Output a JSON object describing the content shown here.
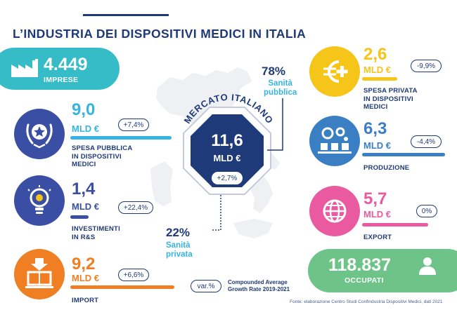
{
  "title": "L’INDUSTRIA DEI DISPOSITIVI MEDICI IN ITALIA",
  "imprese": {
    "value": "4.449",
    "label": "IMPRESE",
    "icon": "factory-icon"
  },
  "spesa_pubblica": {
    "value": "9,0",
    "unit": "MLD €",
    "growth": "+7,4%",
    "label_lines": [
      "SPESA PUBBLICA",
      "IN DISPOSITIVI",
      "MEDICI"
    ],
    "color": "#36b5e3",
    "icon": "star-laurel-icon"
  },
  "investimenti": {
    "value": "1,4",
    "unit": "MLD €",
    "growth": "+22,4%",
    "label_lines": [
      "INVESTIMENTI",
      "IN R&S"
    ],
    "color": "#3a4fa3",
    "icon": "lightbulb-gear-icon"
  },
  "import": {
    "value": "9,2",
    "unit": "MLD €",
    "growth": "+6,6%",
    "label_lines": [
      "IMPORT"
    ],
    "color": "#f07e22",
    "icon": "box-import-icon"
  },
  "spesa_privata": {
    "value": "2,6",
    "unit": "MLD €",
    "growth": "-9,9%",
    "label_lines": [
      "SPESA PRIVATA",
      "IN DISPOSITIVI",
      "MEDICI"
    ],
    "color": "#f5c51a",
    "icon": "euro-cross-icon"
  },
  "produzione": {
    "value": "6,3",
    "unit": "MLD €",
    "growth": "-4,4%",
    "label_lines": [
      "PRODUZIONE"
    ],
    "color": "#3a7fc4",
    "icon": "production-gears-icon"
  },
  "export": {
    "value": "5,7",
    "unit": "MLD €",
    "growth": "0%",
    "label_lines": [
      "EXPORT"
    ],
    "color": "#ea5aa0",
    "icon": "globe-icon"
  },
  "occupati": {
    "value": "118.837",
    "label": "OCCUPATI",
    "icon": "person-icon"
  },
  "mercato": {
    "arc_label": "MERCATO ITALIANO",
    "value": "11,6",
    "unit": "MLD €",
    "growth": "+2,7%"
  },
  "sanita_pubblica": {
    "percent": "78%",
    "label_lines": [
      "Sanità",
      "pubblica"
    ]
  },
  "sanita_privata": {
    "percent": "22%",
    "label_lines": [
      "Sanità",
      "privata"
    ]
  },
  "legend": {
    "badge": "var.%",
    "text_lines": [
      "Compounded Average",
      "Growth Rate 2019-2021"
    ]
  },
  "source": "Fonte: elaborazione Centro Studi Confindustria Dispositivi Medici, dati 2021"
}
